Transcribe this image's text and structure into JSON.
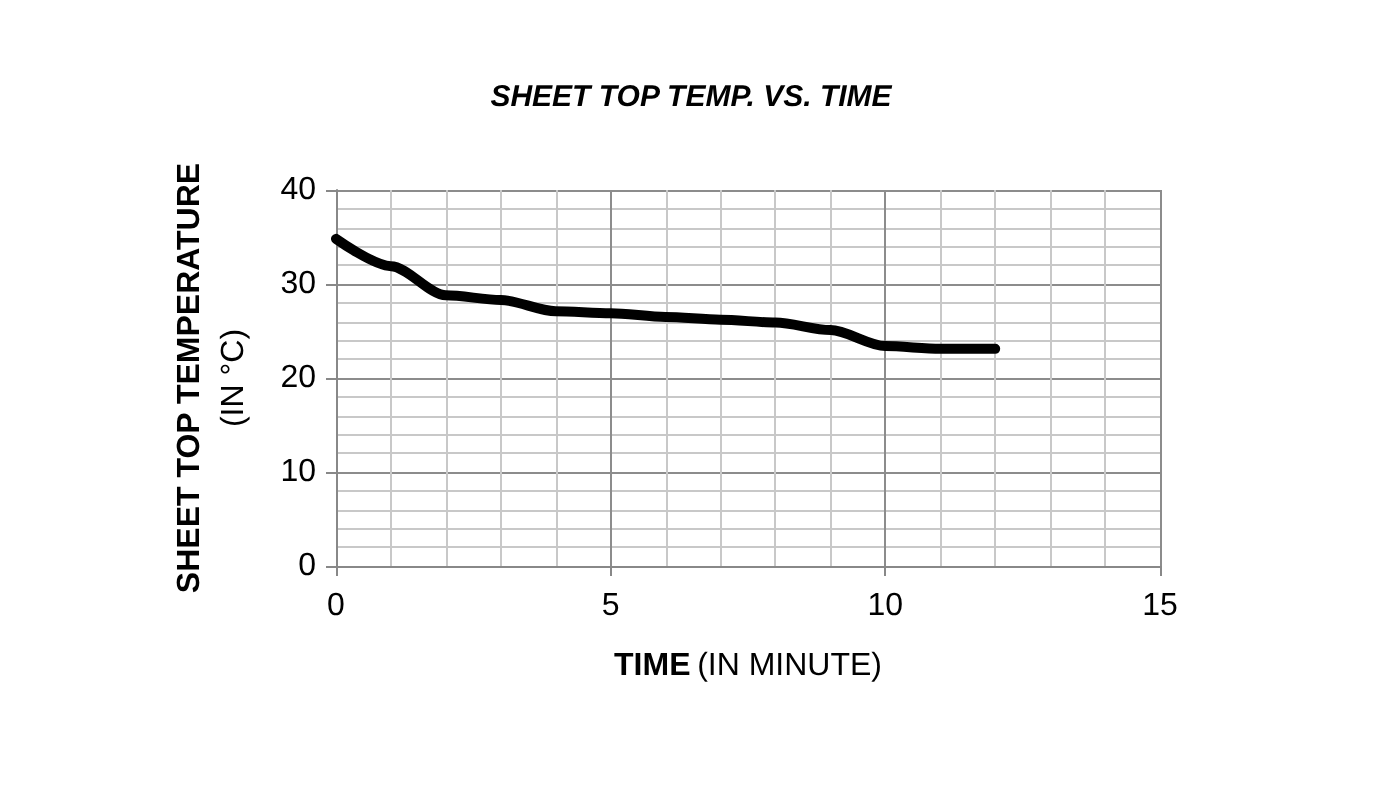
{
  "chart_data": {
    "type": "line",
    "title": "SHEET TOP TEMP. VS. TIME",
    "xlabel": "TIME (IN MINUTE)",
    "ylabel": "SHEET TOP TEMPERATURE (IN °C)",
    "x": [
      0,
      1,
      2,
      3,
      4,
      5,
      6,
      7,
      8,
      9,
      10,
      11,
      12
    ],
    "series": [
      {
        "color": "#000000",
        "values": [
          34.8,
          31.9,
          28.8,
          28.3,
          27.1,
          26.9,
          26.5,
          26.2,
          25.9,
          25.1,
          23.4,
          23.1,
          23.1
        ]
      }
    ],
    "xlim": [
      0,
      15
    ],
    "xticks": [
      0,
      5,
      10,
      15
    ],
    "ylim": [
      0,
      40
    ],
    "yticks": [
      0,
      10,
      20,
      30,
      40
    ],
    "grid": true,
    "marker": "none",
    "line_style": "solid"
  }
}
